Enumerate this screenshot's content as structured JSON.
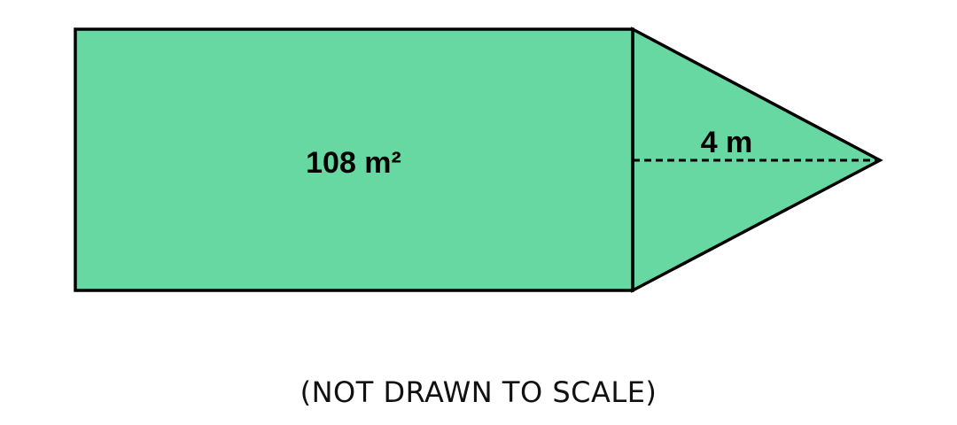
{
  "figure": {
    "fill_color": "#68d8a2",
    "stroke_color": "#000000",
    "rectangle": {
      "area_label": "108 m²"
    },
    "triangle": {
      "height_label": "4 m"
    }
  },
  "caption": "(NOT DRAWN TO SCALE)"
}
